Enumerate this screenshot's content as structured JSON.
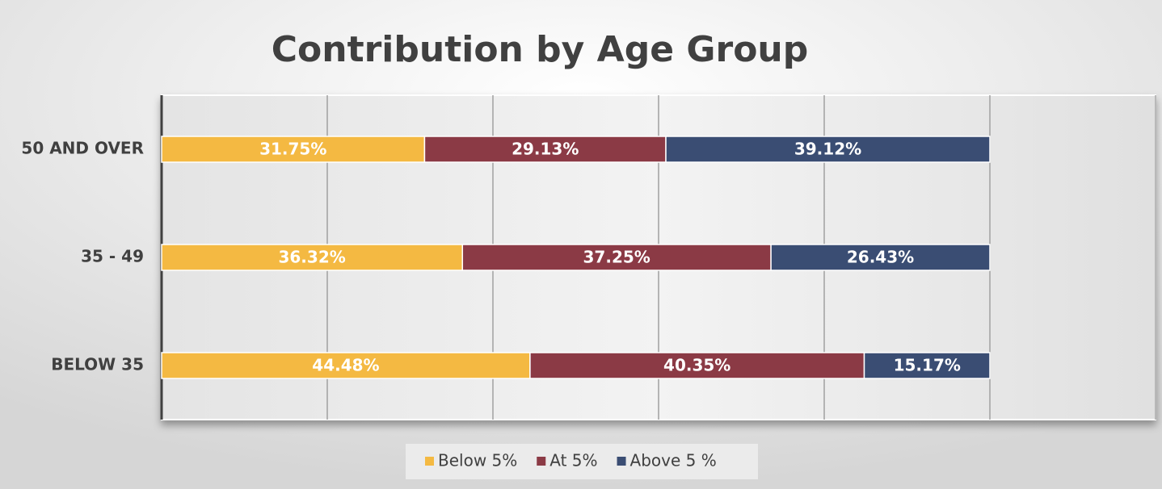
{
  "chart_data": {
    "type": "stacked_bar_horizontal",
    "title": "Contribution by Age Group",
    "categories": [
      "50 AND OVER",
      "35 - 49",
      "BELOW 35"
    ],
    "series": [
      {
        "name": "Below 5%",
        "color": "#f4b942",
        "values": [
          31.75,
          36.32,
          44.48
        ],
        "value_labels": [
          "31.75%",
          "36.32%",
          "44.48%"
        ]
      },
      {
        "name": "At 5%",
        "color": "#8b3a45",
        "values": [
          29.13,
          37.25,
          40.35
        ],
        "value_labels": [
          "29.13%",
          "37.25%",
          "40.35%"
        ]
      },
      {
        "name": "Above 5 %",
        "color": "#3a4d73",
        "values": [
          39.12,
          26.43,
          15.17
        ],
        "value_labels": [
          "39.12%",
          "26.43%",
          "15.17%"
        ]
      }
    ],
    "xlim": [
      0,
      120
    ],
    "xticks": [
      0,
      20,
      40,
      60,
      80,
      100,
      120
    ],
    "grid": true,
    "legend": "bottom"
  }
}
